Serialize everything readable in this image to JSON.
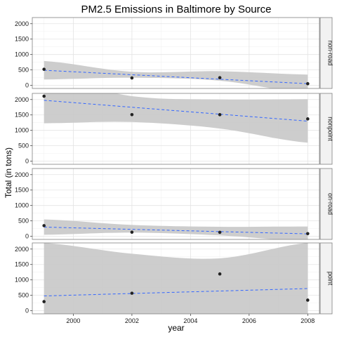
{
  "chart_data": {
    "type": "scatter",
    "title": "PM2.5 Emissions in Baltimore by Source",
    "xlabel": "year",
    "ylabel": "Total (in tons)",
    "xlim": [
      1998.6,
      2008.4
    ],
    "ylim": [
      -100,
      2200
    ],
    "x_ticks": [
      2000,
      2002,
      2004,
      2006,
      2008
    ],
    "y_ticks": [
      0,
      500,
      1000,
      1500,
      2000
    ],
    "grid": true,
    "fit": "linear regression (dashed) with confidence band",
    "colors": {
      "point": "#222222",
      "fit_line": "#3366ff",
      "band": "#c8c8c8",
      "panel_border": "#7f7f7f",
      "strip_bg": "#f2f2f2"
    },
    "facets": [
      {
        "label": "non-road",
        "x": [
          1999,
          2002,
          2005,
          2008
        ],
        "y": [
          522,
          241,
          249,
          55
        ],
        "fit_y": [
          490,
          55
        ],
        "band_upper": [
          790,
          440,
          460,
          350
        ],
        "band_lower": [
          190,
          250,
          150,
          -245
        ]
      },
      {
        "label": "nonpoint",
        "x": [
          1999,
          2002,
          2005,
          2008
        ],
        "y": [
          2108,
          1510,
          1509,
          1373
        ],
        "fit_y": [
          1975,
          1300
        ],
        "band_upper": [
          2720,
          2110,
          2000,
          2010
        ],
        "band_lower": [
          1230,
          1270,
          1060,
          600
        ]
      },
      {
        "label": "on-road",
        "x": [
          1999,
          2002,
          2005,
          2008
        ],
        "y": [
          347,
          134,
          130,
          88
        ],
        "fit_y": [
          300,
          80
        ],
        "band_upper": [
          550,
          370,
          310,
          320
        ],
        "band_lower": [
          50,
          120,
          30,
          -160
        ]
      },
      {
        "label": "point",
        "x": [
          1999,
          2002,
          2005,
          2008
        ],
        "y": [
          296,
          569,
          1193,
          345
        ],
        "fit_y": [
          480,
          720
        ],
        "band_upper": [
          2200,
          1850,
          1700,
          2200
        ],
        "band_lower": [
          -1240,
          -690,
          -440,
          -760
        ]
      }
    ]
  }
}
